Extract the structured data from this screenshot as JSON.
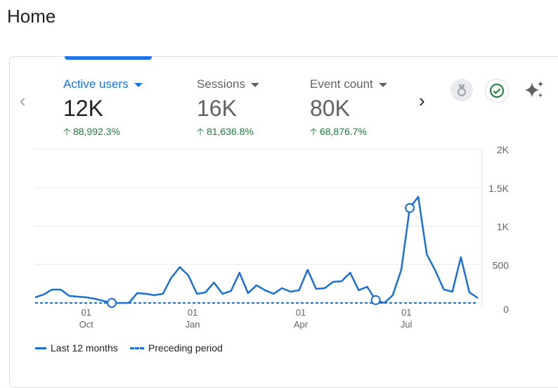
{
  "page": {
    "title": "Home"
  },
  "metrics": [
    {
      "label": "Active users",
      "value": "12K",
      "change": "88,992.3%"
    },
    {
      "label": "Sessions",
      "value": "16K",
      "change": "81,636.8%"
    },
    {
      "label": "Event count",
      "value": "80K",
      "change": "68,876.7%"
    }
  ],
  "colors": {
    "accent": "#1a73e8",
    "positive": "#188038",
    "line": "#1a6fd4"
  },
  "chart_data": {
    "type": "line",
    "ylim": [
      0,
      2000
    ],
    "yticks": [
      "0",
      "500",
      "1K",
      "1.5K",
      "2K"
    ],
    "xticks": [
      {
        "day": "01",
        "month": "Oct",
        "index": 6
      },
      {
        "day": "01",
        "month": "Jan",
        "index": 18.5
      },
      {
        "day": "01",
        "month": "Apr",
        "index": 31.2
      },
      {
        "day": "01",
        "month": "Jul",
        "index": 43.6
      }
    ],
    "series": [
      {
        "name": "Last 12 months",
        "values": [
          73,
          110,
          174,
          174,
          91,
          82,
          73,
          55,
          27,
          0,
          0,
          0,
          128,
          119,
          101,
          119,
          329,
          466,
          356,
          119,
          137,
          265,
          119,
          155,
          393,
          128,
          229,
          165,
          119,
          192,
          146,
          165,
          430,
          183,
          192,
          274,
          283,
          393,
          165,
          210,
          37,
          0,
          101,
          430,
          1234,
          1380,
          631,
          420,
          174,
          146,
          594,
          137,
          64
        ]
      },
      {
        "name": "Preceding period",
        "values": [
          0,
          0,
          0,
          0,
          0,
          0,
          0,
          0,
          0,
          0,
          0,
          0,
          0,
          0,
          0,
          0,
          0,
          0,
          0,
          0,
          0,
          0,
          0,
          0,
          0,
          0,
          0,
          0,
          0,
          0,
          0,
          0,
          0,
          0,
          0,
          0,
          0,
          0,
          0,
          0,
          0,
          0,
          0,
          0,
          0,
          0,
          0,
          0,
          0,
          0,
          0,
          0,
          0
        ]
      }
    ],
    "markers": [
      9,
      40,
      44
    ]
  }
}
